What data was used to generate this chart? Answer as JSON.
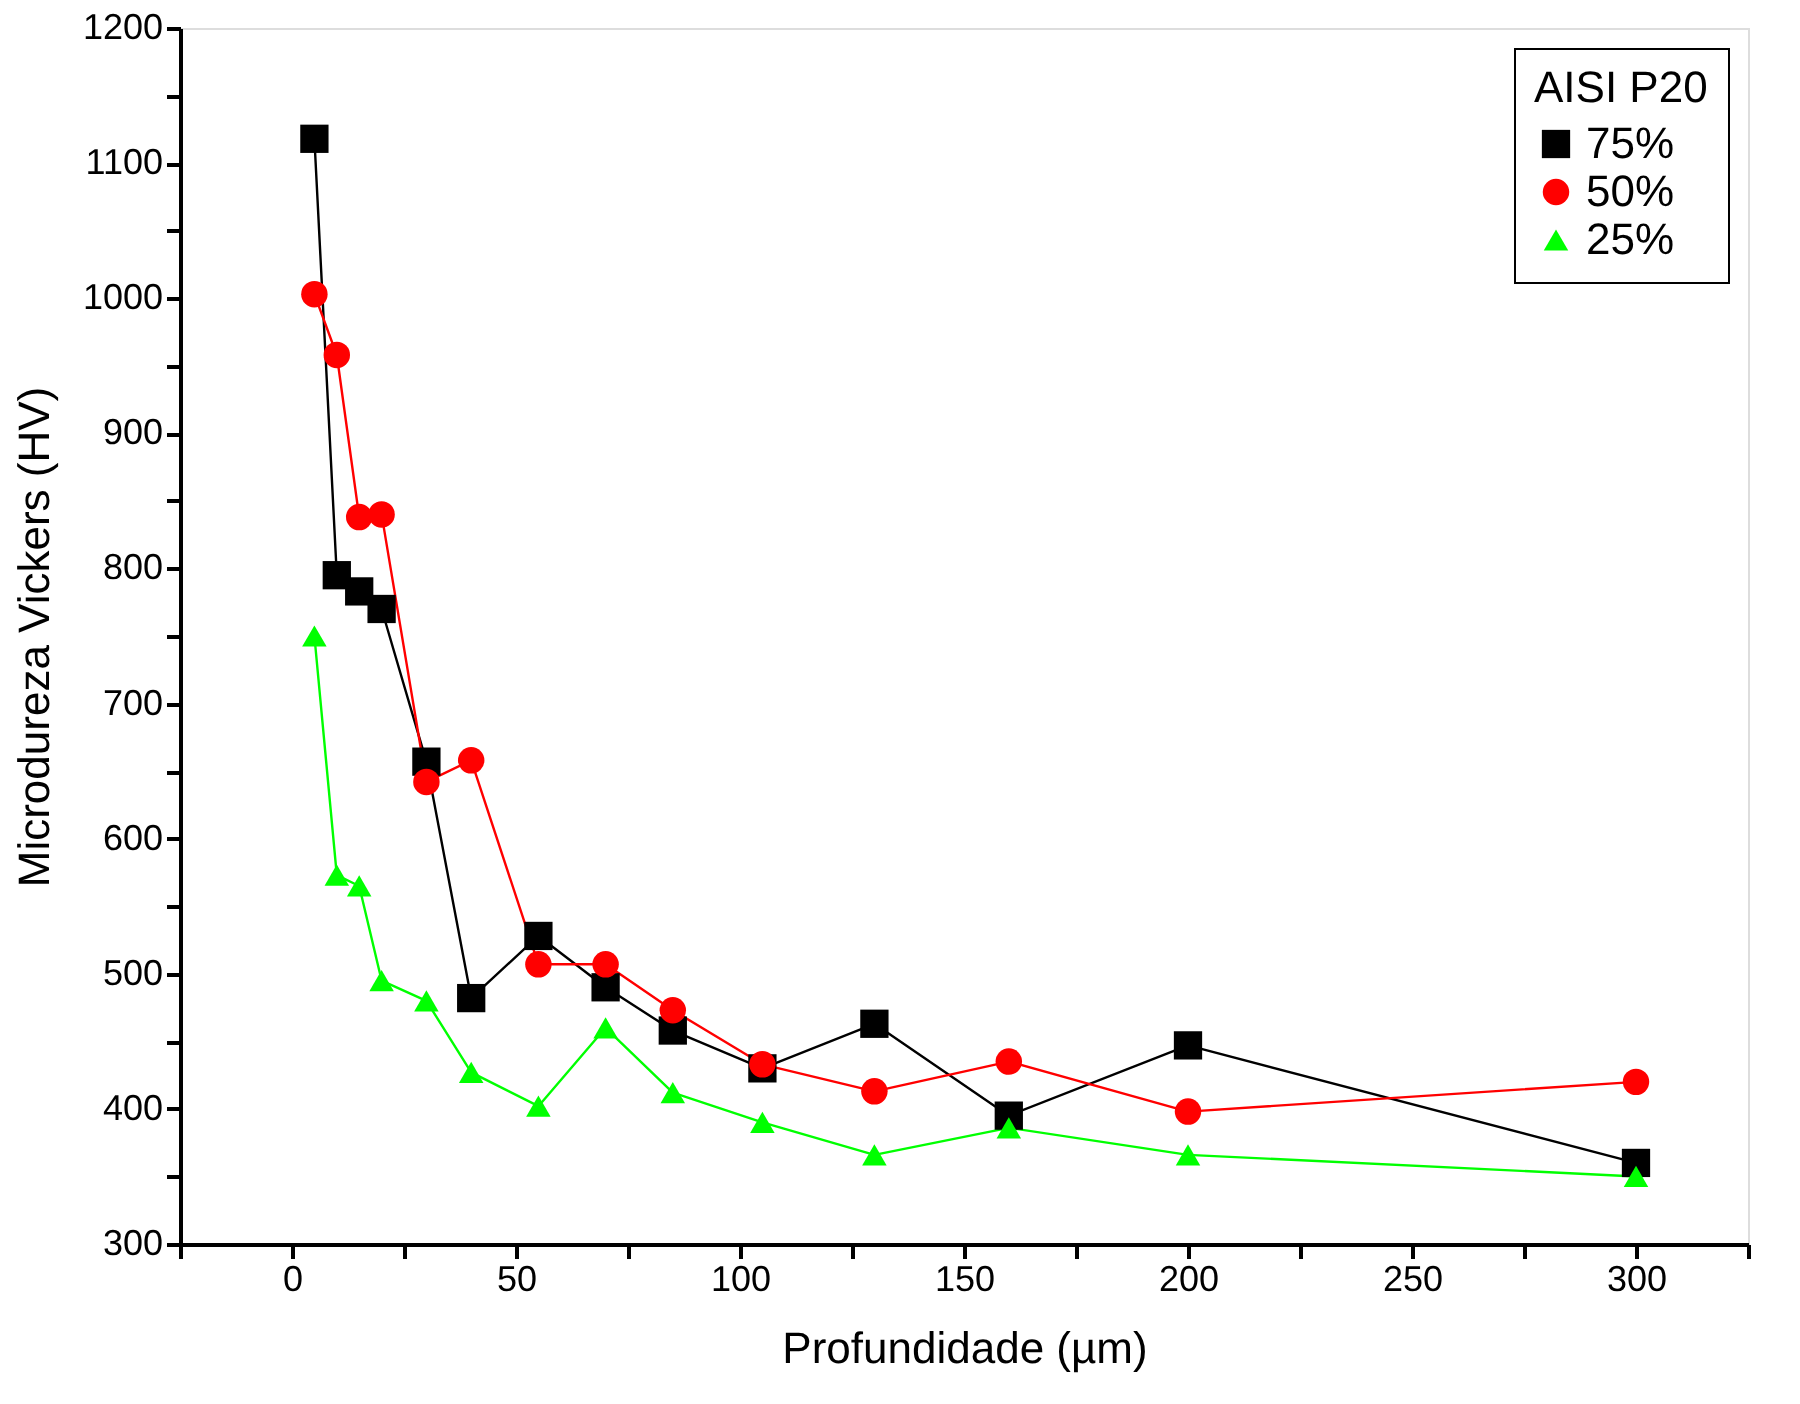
{
  "chart_data": {
    "type": "line",
    "xlabel": "Profundidade (µm)",
    "ylabel": "Microdureza Vickers (HV)",
    "legend_title": "AISI P20",
    "legend": "top right",
    "grid": false,
    "x": [
      5,
      10,
      15,
      20,
      30,
      40,
      55,
      70,
      85,
      105,
      130,
      160,
      200,
      300
    ],
    "xlim": [
      -25,
      325
    ],
    "xticks": [
      {
        "value": -25,
        "label": null
      },
      0,
      {
        "value": 25,
        "label": null
      },
      50,
      {
        "value": 75,
        "label": null
      },
      100,
      {
        "value": 125,
        "label": null
      },
      150,
      {
        "value": 175,
        "label": null
      },
      200,
      {
        "value": 225,
        "label": null
      },
      250,
      {
        "value": 275,
        "label": null
      },
      300,
      {
        "value": 325,
        "label": null
      }
    ],
    "ylim": [
      300,
      1200
    ],
    "yticks": [
      300,
      {
        "value": 350,
        "label": null
      },
      400,
      {
        "value": 450,
        "label": null
      },
      500,
      {
        "value": 550,
        "label": null
      },
      600,
      {
        "value": 650,
        "label": null
      },
      700,
      {
        "value": 750,
        "label": null
      },
      800,
      {
        "value": 850,
        "label": null
      },
      900,
      {
        "value": 950,
        "label": null
      },
      1000,
      {
        "value": 1050,
        "label": null
      },
      1100,
      {
        "value": 1150,
        "label": null
      },
      1200
    ],
    "line_style": "solid",
    "series": [
      {
        "name": "75%",
        "color": "#000000",
        "marker": "square",
        "values": [
          1118,
          795,
          783,
          770,
          657,
          482,
          528,
          490,
          458,
          430,
          463,
          395,
          447,
          360
        ]
      },
      {
        "name": "50%",
        "color": "#ff0000",
        "marker": "circle",
        "values": [
          1003,
          958,
          838,
          840,
          642,
          658,
          507,
          507,
          473,
          433,
          413,
          435,
          398,
          420
        ]
      },
      {
        "name": "25%",
        "color": "#00ff00",
        "marker": "triangle",
        "values": [
          750,
          573,
          565,
          495,
          480,
          427,
          402,
          460,
          412,
          390,
          366,
          386,
          366,
          350
        ]
      }
    ]
  }
}
